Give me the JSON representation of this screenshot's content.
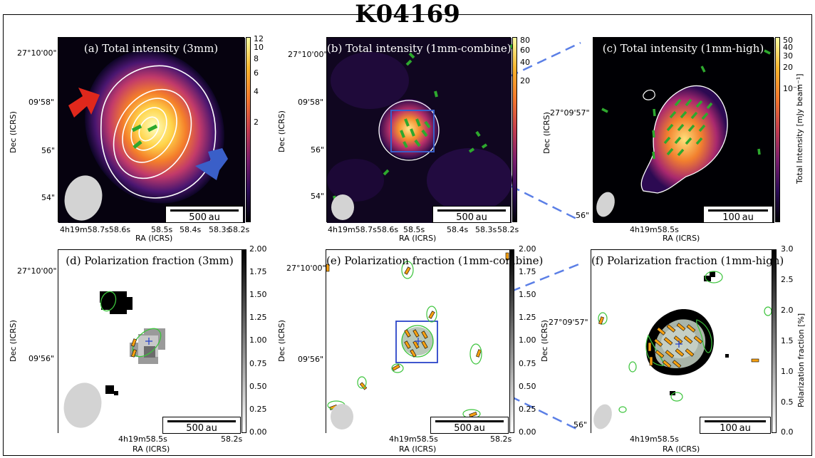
{
  "figure": {
    "title": "K04169"
  },
  "panels": {
    "a": {
      "title": "(a) Total intensity (3mm)",
      "scalebar": "500 au",
      "dec_ticks": [
        "27°10'00\"",
        "09'58\"",
        "56\"",
        "54\""
      ],
      "ra_ticks": [
        "4h19m58.7s58.6s",
        "58.5s",
        "58.4s",
        "58.3s",
        "58.2s"
      ],
      "cbar_ticks": [
        "12",
        "10",
        "8",
        "6",
        "4",
        "2"
      ]
    },
    "b": {
      "title": "(b) Total intensity (1mm-combine)",
      "scalebar": "500 au",
      "dec_ticks": [
        "27°10'00\"",
        "09'58\"",
        "56\"",
        "54\""
      ],
      "ra_ticks": [
        "4h19m58.7s58.6s",
        "58.5s",
        "58.4s",
        "58.3s",
        "58.2s"
      ],
      "cbar_ticks": [
        "80",
        "60",
        "40",
        "20"
      ]
    },
    "c": {
      "title": "(c) Total intensity (1mm-high)",
      "scalebar": "100 au",
      "dec_ticks": [
        "27°09'57\"",
        "56\""
      ],
      "ra_ticks": [
        "4h19m58.5s"
      ],
      "cbar_ticks": [
        "50",
        "40",
        "30",
        "20",
        "10⁻¹"
      ],
      "cbar_label": "Total Intensity [mJy beam⁻¹]"
    },
    "d": {
      "title": "(d) Polarization fraction (3mm)",
      "scalebar": "500 au",
      "dec_ticks": [
        "27°10'00\"",
        "09'56\""
      ],
      "ra_ticks": [
        "4h19m58.5s",
        "58.2s"
      ],
      "cbar_ticks": [
        "2.00",
        "1.75",
        "1.50",
        "1.25",
        "1.00",
        "0.75",
        "0.50",
        "0.25",
        "0.00"
      ]
    },
    "e": {
      "title": "(e) Polarization fraction (1mm-combine)",
      "scalebar": "500 au",
      "dec_ticks": [
        "27°10'00\"",
        "09'56\""
      ],
      "ra_ticks": [
        "4h19m58.5s",
        "58.2s"
      ],
      "cbar_ticks": [
        "2.00",
        "1.75",
        "1.50",
        "1.25",
        "1.00",
        "0.75",
        "0.50",
        "0.25",
        "0.00"
      ]
    },
    "f": {
      "title": "(f) Polarization fraction (1mm-high)",
      "scalebar": "100 au",
      "dec_ticks": [
        "27°09'57\"",
        "56\""
      ],
      "ra_ticks": [
        "4h19m58.5s"
      ],
      "cbar_ticks": [
        "3.0",
        "2.5",
        "2.0",
        "1.5",
        "1.0",
        "0.5",
        "0.0"
      ],
      "cbar_label": "Polarization fraction [%]"
    }
  },
  "axes": {
    "dec_label": "Dec (ICRS)",
    "ra_label": "RA (ICRS)"
  },
  "colors": {
    "vector_green": "#3fbf2f",
    "vector_orange": "#f5a012",
    "arrow_red": "#e0281c",
    "arrow_blue": "#3a5fc8",
    "zoom_line": "#5b7fe6",
    "contour_green": "#3cc43c"
  }
}
